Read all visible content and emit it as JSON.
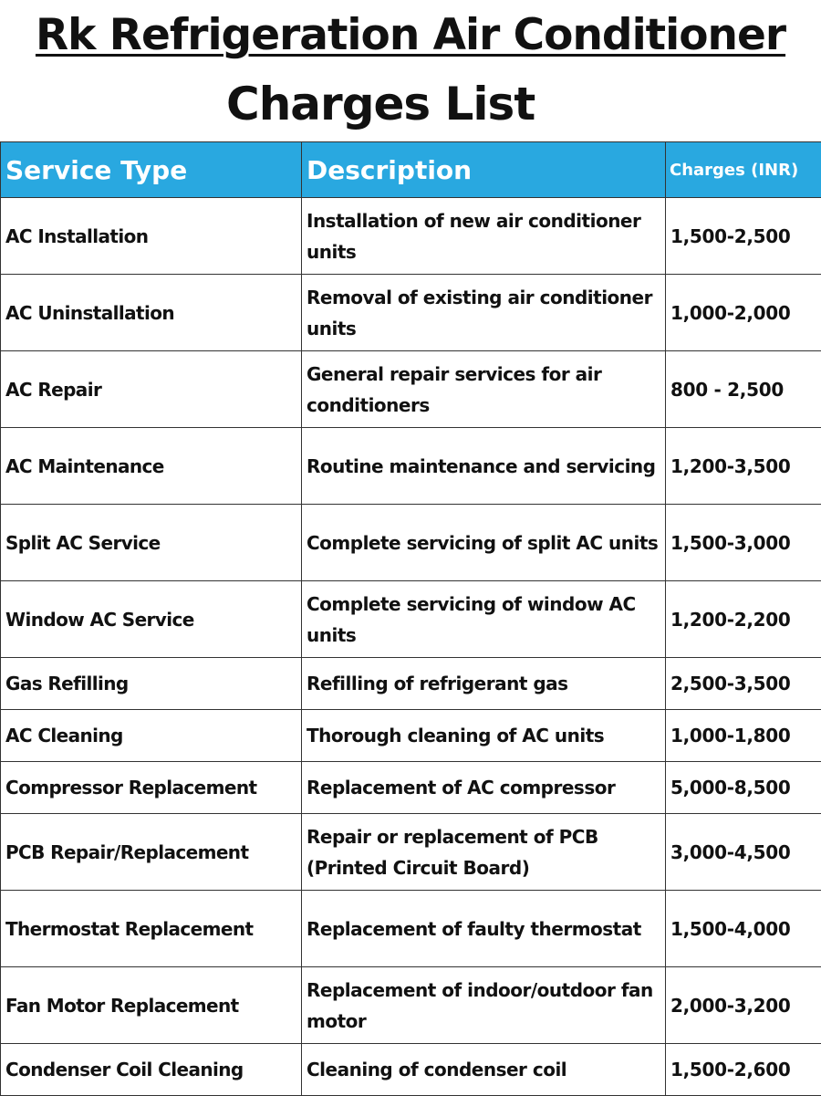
{
  "title": {
    "line1": "Rk Refrigeration Air Conditioner",
    "line2": "Charges List"
  },
  "table": {
    "headers": {
      "service": "Service Type",
      "description": "Description",
      "charges": "Charges (INR)"
    },
    "rows": [
      {
        "service": "AC Installation",
        "description": "Installation of new air conditioner units",
        "charges": "1,500-2,500"
      },
      {
        "service": "AC Uninstallation",
        "description": "Removal of existing air conditioner units",
        "charges": "1,000-2,000"
      },
      {
        "service": "AC Repair",
        "description": "General repair services for air conditioners",
        "charges": "800 - 2,500"
      },
      {
        "service": "AC Maintenance",
        "description": "Routine maintenance and servicing",
        "charges": "1,200-3,500"
      },
      {
        "service": "Split AC Service",
        "description": "Complete servicing of split AC units",
        "charges": "1,500-3,000"
      },
      {
        "service": "Window AC Service",
        "description": "Complete servicing of window AC units",
        "charges": "1,200-2,200"
      },
      {
        "service": "Gas Refilling",
        "description": "Refilling of refrigerant gas",
        "charges": "2,500-3,500"
      },
      {
        "service": "AC Cleaning",
        "description": "Thorough cleaning of AC units",
        "charges": "1,000-1,800"
      },
      {
        "service": "Compressor Replacement",
        "description": "Replacement of AC compressor",
        "charges": "5,000-8,500"
      },
      {
        "service": "PCB Repair/Replacement",
        "description": "Repair or replacement of PCB (Printed Circuit Board)",
        "charges": "3,000-4,500"
      },
      {
        "service": "Thermostat Replacement",
        "description": "Replacement of faulty thermostat",
        "charges": "1,500-4,000"
      },
      {
        "service": "Fan Motor Replacement",
        "description": "Replacement of indoor/outdoor fan motor",
        "charges": "2,000-3,200"
      },
      {
        "service": "Condenser Coil Cleaning",
        "description": "Cleaning of condenser coil",
        "charges": "1,500-2,600"
      }
    ]
  },
  "colors": {
    "header_background": "#29a8e0",
    "header_text": "#ffffff",
    "body_text": "#111111",
    "border": "#333333"
  }
}
